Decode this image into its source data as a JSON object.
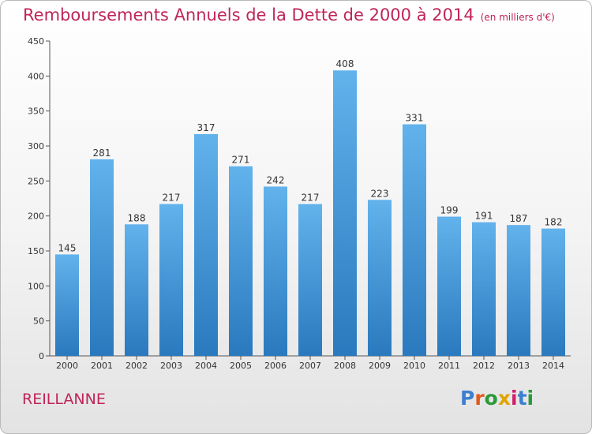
{
  "header": {
    "title": "Remboursements Annuels de la Dette de 2000 à 2014",
    "unit": "(en milliers d'€)"
  },
  "footer": {
    "town": "REILLANNE",
    "logo_text": "Proxiti",
    "logo_colors": [
      "#3a7fd0",
      "#e05a1c",
      "#2a9a3a",
      "#e0a400",
      "#d0206a",
      "#3a7fd0",
      "#2a9a3a"
    ]
  },
  "colors": {
    "bar_top": "#62b2ec",
    "bar_bottom": "#2a79be",
    "title": "#c0245a",
    "axis": "#333333"
  },
  "chart_data": {
    "type": "bar",
    "title": "Remboursements Annuels de la Dette de 2000 à 2014",
    "subtitle": "(en milliers d'€)",
    "xlabel": "",
    "ylabel": "",
    "ylim": [
      0,
      450
    ],
    "yticks": [
      0,
      50,
      100,
      150,
      200,
      250,
      300,
      350,
      400,
      450
    ],
    "grid": false,
    "categories": [
      "2000",
      "2001",
      "2002",
      "2003",
      "2004",
      "2005",
      "2006",
      "2007",
      "2008",
      "2009",
      "2010",
      "2011",
      "2012",
      "2013",
      "2014"
    ],
    "values": [
      145,
      281,
      188,
      217,
      317,
      271,
      242,
      217,
      408,
      223,
      331,
      199,
      191,
      187,
      182
    ]
  }
}
